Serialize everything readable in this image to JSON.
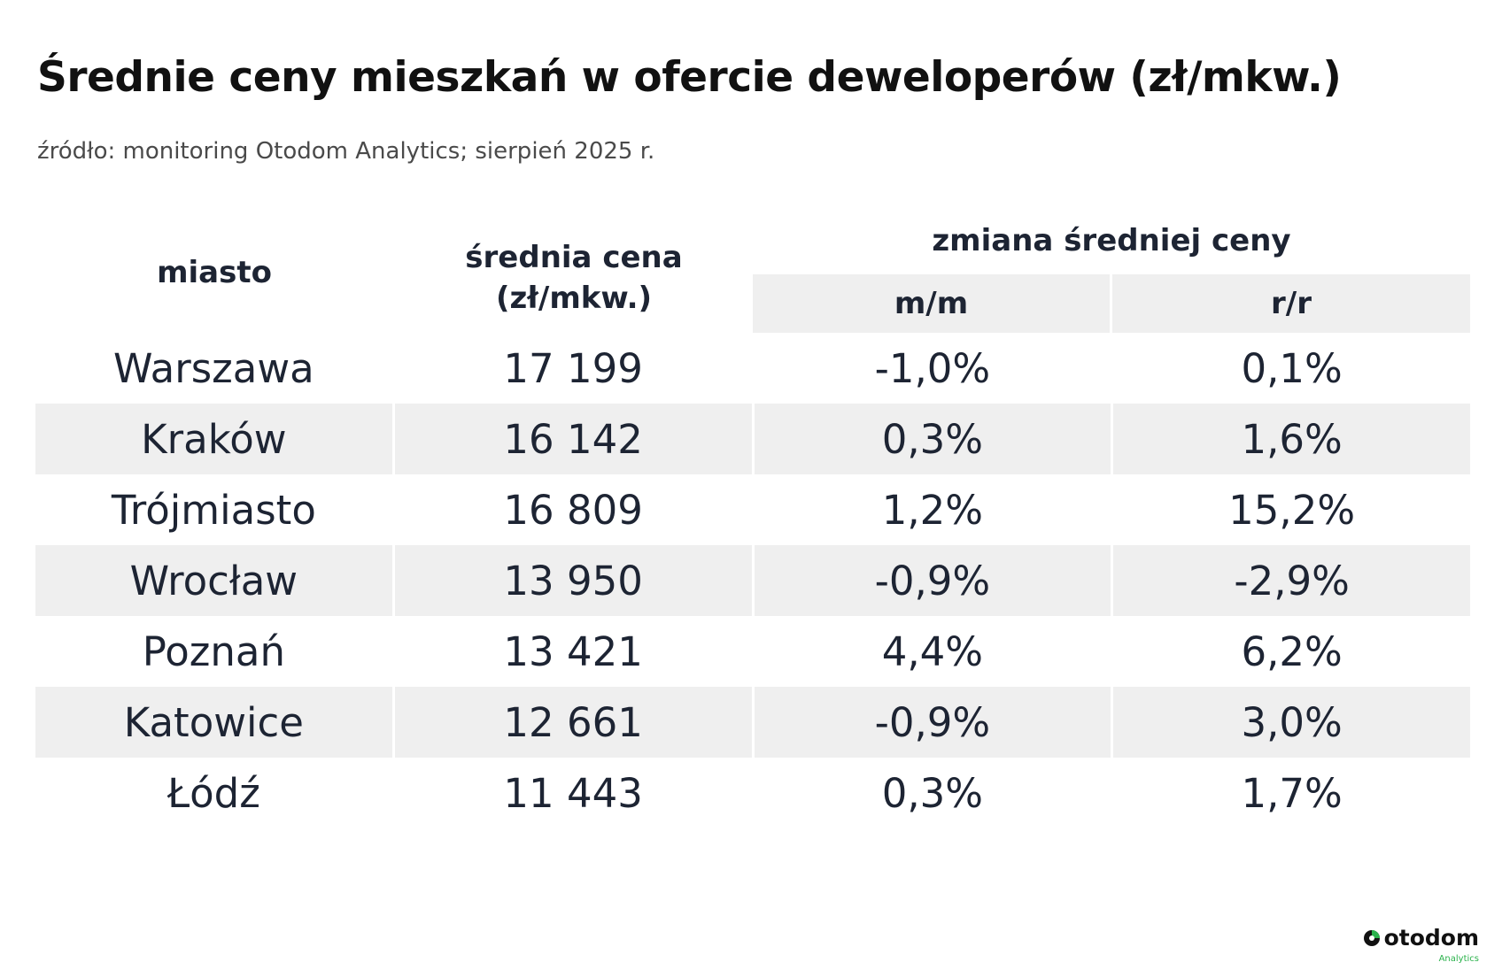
{
  "title": "Średnie ceny mieszkań w ofercie deweloperów (zł/mkw.)",
  "subtitle": "źródło: monitoring Otodom Analytics; sierpień 2025 r.",
  "table": {
    "headers": {
      "city": "miasto",
      "price_line1": "średnia cena",
      "price_line2": "(zł/mkw.)",
      "change": "zmiana średniej ceny",
      "mm": "m/m",
      "rr": "r/r"
    },
    "rows": [
      {
        "city": "Warszawa",
        "price": "17 199",
        "mm": "-1,0%",
        "rr": "0,1%"
      },
      {
        "city": "Kraków",
        "price": "16 142",
        "mm": "0,3%",
        "rr": "1,6%"
      },
      {
        "city": "Trójmiasto",
        "price": "16 809",
        "mm": "1,2%",
        "rr": "15,2%"
      },
      {
        "city": "Wrocław",
        "price": "13 950",
        "mm": "-0,9%",
        "rr": "-2,9%"
      },
      {
        "city": "Poznań",
        "price": "13 421",
        "mm": "4,4%",
        "rr": "6,2%"
      },
      {
        "city": "Katowice",
        "price": "12 661",
        "mm": "-0,9%",
        "rr": "3,0%"
      },
      {
        "city": "Łódź",
        "price": "11 443",
        "mm": "0,3%",
        "rr": "1,7%"
      }
    ]
  },
  "logo": {
    "name": "otodom",
    "sub": "Analytics",
    "icon": "otodom-logo-icon",
    "colors": {
      "green": "#2bb24c",
      "dark": "#111111"
    }
  },
  "colors": {
    "text": "#1d2433",
    "shade": "#efefef",
    "background": "#ffffff"
  }
}
